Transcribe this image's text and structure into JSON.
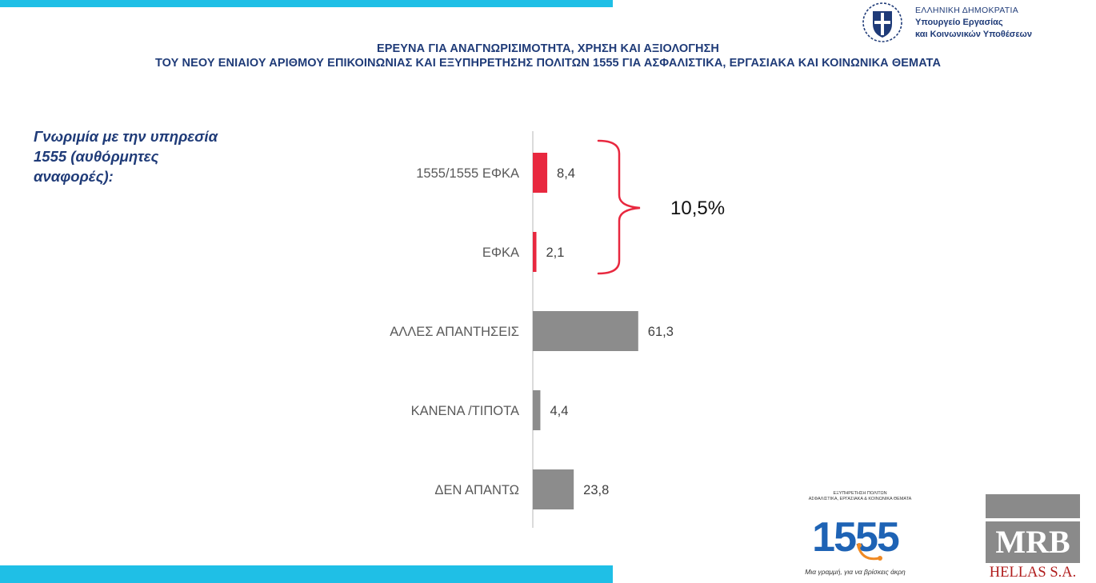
{
  "header": {
    "title_line1": "ΕΡΕΥΝΑ ΓΙΑ ΑΝΑΓΝΩΡΙΣΙΜΟΤΗΤΑ, ΧΡΗΣΗ ΚΑΙ ΑΞΙΟΛΟΓΗΣΗ",
    "title_line2": "ΤΟΥ ΝΕΟΥ ΕΝΙΑΙΟΥ ΑΡΙΘΜΟΥ ΕΠΙΚΟΙΝΩΝΙΑΣ ΚΑΙ ΕΞΥΠΗΡΕΤΗΣΗΣ ΠΟΛΙΤΩΝ 1555  ΓΙΑ ΑΣΦΑΛΙΣΤΙΚΑ, ΕΡΓΑΣΙΑΚΑ ΚΑΙ ΚΟΙΝΩΝΙΚΑ ΘΕΜΑΤΑ"
  },
  "ministry": {
    "line1": "ΕΛΛΗΝΙΚΗ ΔΗΜΟΚΡΑΤΙΑ",
    "line2": "Υπουργείο Εργασίας",
    "line3": "και Κοινωνικών Υποθέσεων"
  },
  "subtitle": [
    "Γνωριμία με την υπηρεσία",
    "1555 (αυθόρμητες",
    "αναφορές):"
  ],
  "chart_data": {
    "type": "bar",
    "orientation": "horizontal",
    "categories": [
      "1555/1555 ΕΦΚΑ",
      "ΕΦΚΑ",
      "ΑΛΛΕΣ ΑΠΑΝΤΗΣΕΙΣ",
      "ΚΑΝΕΝΑ /ΤΙΠΟΤΑ",
      "ΔΕΝ ΑΠΑΝΤΩ"
    ],
    "values": [
      8.4,
      2.1,
      61.3,
      4.4,
      23.8
    ],
    "value_labels": [
      "8,4",
      "2,1",
      "61,3",
      "4,4",
      "23,8"
    ],
    "bar_colors": [
      "#e8283f",
      "#e8283f",
      "#8c8c8c",
      "#8c8c8c",
      "#8c8c8c"
    ],
    "bracket_color": "#e8283f",
    "annotation": "10,5%",
    "xlim": [
      0,
      100
    ]
  },
  "logo_1555": {
    "small_text_1": "ΕΞΥΠΗΡΕΤΗΣΗ ΠΟΛΙΤΩΝ",
    "small_text_2": "ΑΣΦΑΛΙΣΤΙΚΑ, ΕΡΓΑΣΙΑΚΑ & ΚΟΙΝΩΝΙΚΑ ΘΕΜΑΤΑ",
    "number": "1555",
    "tagline": "Μια γραμμή, για να βρίσκεις άκρη"
  },
  "mrb_logo": {
    "name": "MRB",
    "sub": "HELLAS S.A."
  }
}
